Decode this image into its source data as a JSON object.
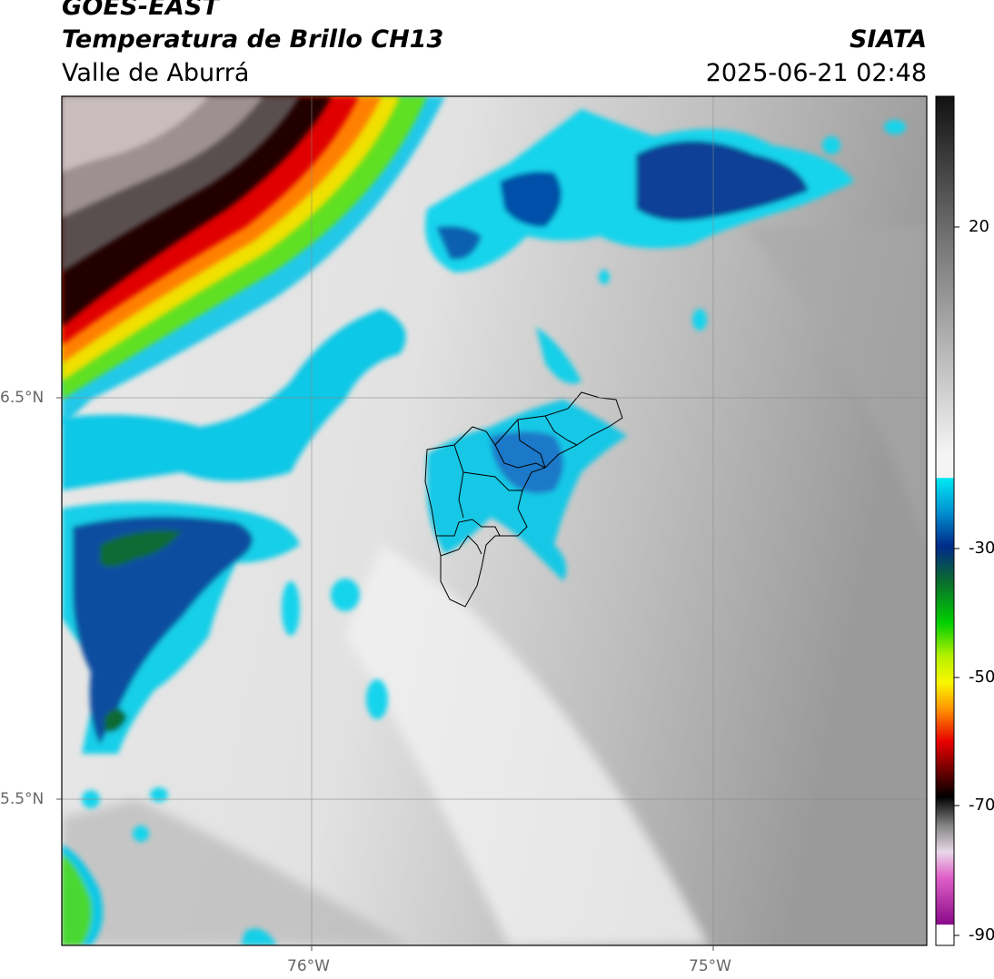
{
  "header": {
    "satellite": "GOES-EAST",
    "product": "Temperatura de Brillo CH13",
    "region": "Valle de Aburrá",
    "organization": "SIATA",
    "datetime": "2025-06-21 02:48"
  },
  "map": {
    "lat_ticks": [
      "6.5°N",
      "5.5°N"
    ],
    "lon_ticks": [
      "76°W",
      "75°W"
    ]
  },
  "colorbar": {
    "ticks": [
      "20",
      "-30",
      "-50",
      "-70",
      "-90"
    ]
  }
}
